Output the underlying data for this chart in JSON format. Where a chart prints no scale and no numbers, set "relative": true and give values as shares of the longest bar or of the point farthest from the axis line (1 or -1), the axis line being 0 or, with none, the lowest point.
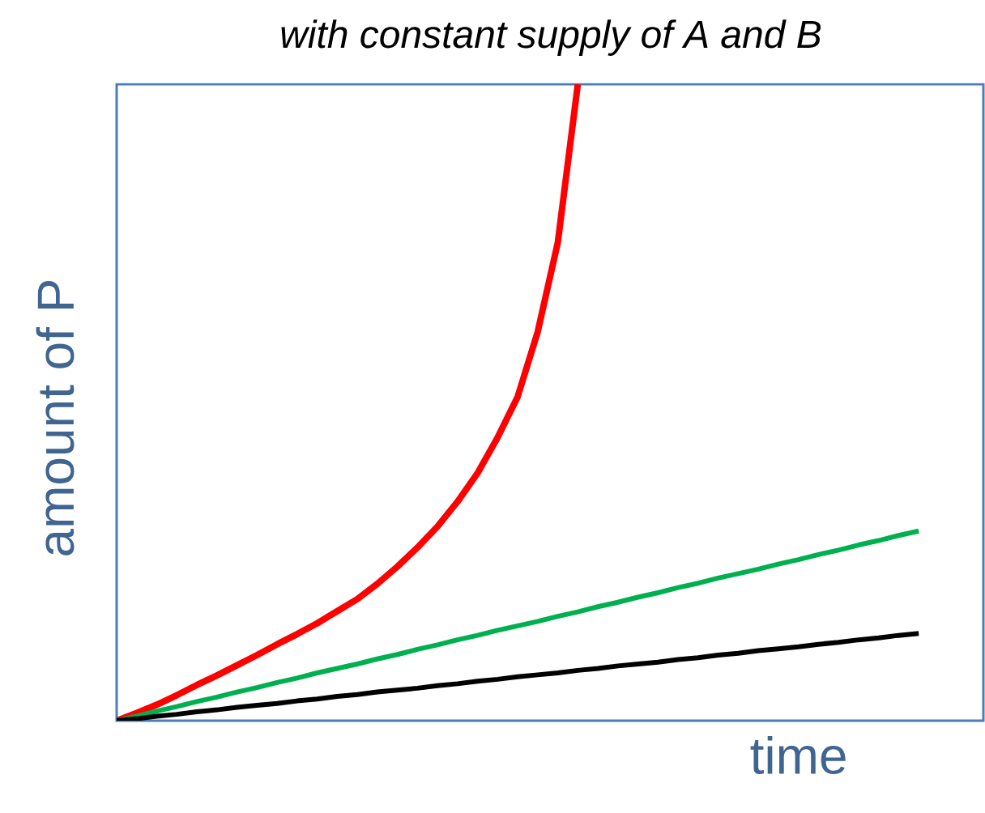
{
  "chart_data": {
    "type": "line",
    "title": "with constant supply of A and B",
    "xlabel": "time",
    "ylabel": "amount of P",
    "relative": true,
    "categories": [
      null,
      null,
      null,
      null,
      null,
      null,
      null,
      null,
      null,
      null,
      null,
      null,
      null,
      null,
      null,
      null,
      null,
      null,
      null,
      null,
      null,
      null,
      null,
      null,
      null,
      null,
      null,
      null,
      null,
      null,
      null,
      null,
      null,
      null,
      null,
      null,
      null,
      null,
      null,
      null,
      null
    ],
    "series": [
      {
        "color": "#ff0000",
        "values": [
          0,
          0.012,
          0.025,
          0.04,
          0.056,
          0.071,
          0.087,
          0.103,
          0.12,
          0.136,
          0.153,
          0.172,
          0.191,
          0.215,
          0.242,
          0.272,
          0.305,
          0.344,
          0.389,
          0.445,
          0.509,
          0.611,
          0.751,
          1,
          null,
          null,
          null,
          null,
          null,
          null,
          null,
          null,
          null,
          null,
          null,
          null,
          null,
          null,
          null,
          null,
          null
        ]
      },
      {
        "color": "#00b050",
        "values": [
          0,
          0.007,
          0.015,
          0.022,
          0.03,
          0.037,
          0.045,
          0.052,
          0.06,
          0.067,
          0.075,
          0.082,
          0.089,
          0.097,
          0.104,
          0.112,
          0.119,
          0.127,
          0.134,
          0.142,
          0.149,
          0.156,
          0.164,
          0.171,
          0.179,
          0.186,
          0.194,
          0.201,
          0.209,
          0.216,
          0.224,
          0.231,
          0.238,
          0.246,
          0.253,
          0.261,
          0.268,
          0.276,
          0.283,
          0.291,
          0.298
        ]
      },
      {
        "color": "#000000",
        "values": [
          0,
          0.003,
          0.007,
          0.01,
          0.014,
          0.017,
          0.021,
          0.024,
          0.027,
          0.031,
          0.034,
          0.038,
          0.041,
          0.045,
          0.048,
          0.051,
          0.055,
          0.058,
          0.062,
          0.065,
          0.069,
          0.072,
          0.075,
          0.079,
          0.082,
          0.086,
          0.089,
          0.092,
          0.096,
          0.099,
          0.103,
          0.106,
          0.11,
          0.113,
          0.116,
          0.12,
          0.123,
          0.127,
          0.13,
          0.134,
          0.137
        ]
      }
    ]
  }
}
